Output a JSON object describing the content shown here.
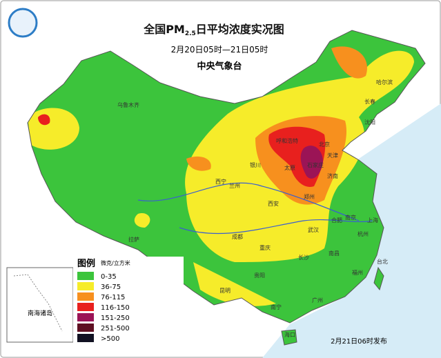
{
  "header": {
    "title_main": "全国PM",
    "title_subscript": "2.5",
    "title_rest": "日平均浓度实况图",
    "period": "2月20日05时—21日05时",
    "issuer": "中央气象台"
  },
  "legend": {
    "title": "图例",
    "unit": "微克/立方米",
    "items": [
      {
        "label": "0-35",
        "color": "#3cc43c"
      },
      {
        "label": "36-75",
        "color": "#f6ec2a"
      },
      {
        "label": "76-115",
        "color": "#f7901e"
      },
      {
        "label": "116-150",
        "color": "#e8201e"
      },
      {
        "label": "151-250",
        "color": "#9b1456"
      },
      {
        "label": "251-500",
        "color": "#5e0f22"
      },
      {
        "label": ">500",
        "color": "#111122"
      }
    ]
  },
  "inset": {
    "label": "南海诸岛"
  },
  "footer": {
    "published": "2月21日06时发布"
  },
  "cities": [
    "乌鲁木齐",
    "哈尔滨",
    "长春",
    "沈阳",
    "呼和浩特",
    "北京",
    "天津",
    "石家庄",
    "太原",
    "济南",
    "银川",
    "兰州",
    "西宁",
    "西安",
    "郑州",
    "合肥",
    "南京",
    "上海",
    "杭州",
    "武汉",
    "成都",
    "重庆",
    "贵阳",
    "长沙",
    "南昌",
    "福州",
    "台北",
    "昆明",
    "南宁",
    "广州",
    "海口",
    "拉萨"
  ]
}
